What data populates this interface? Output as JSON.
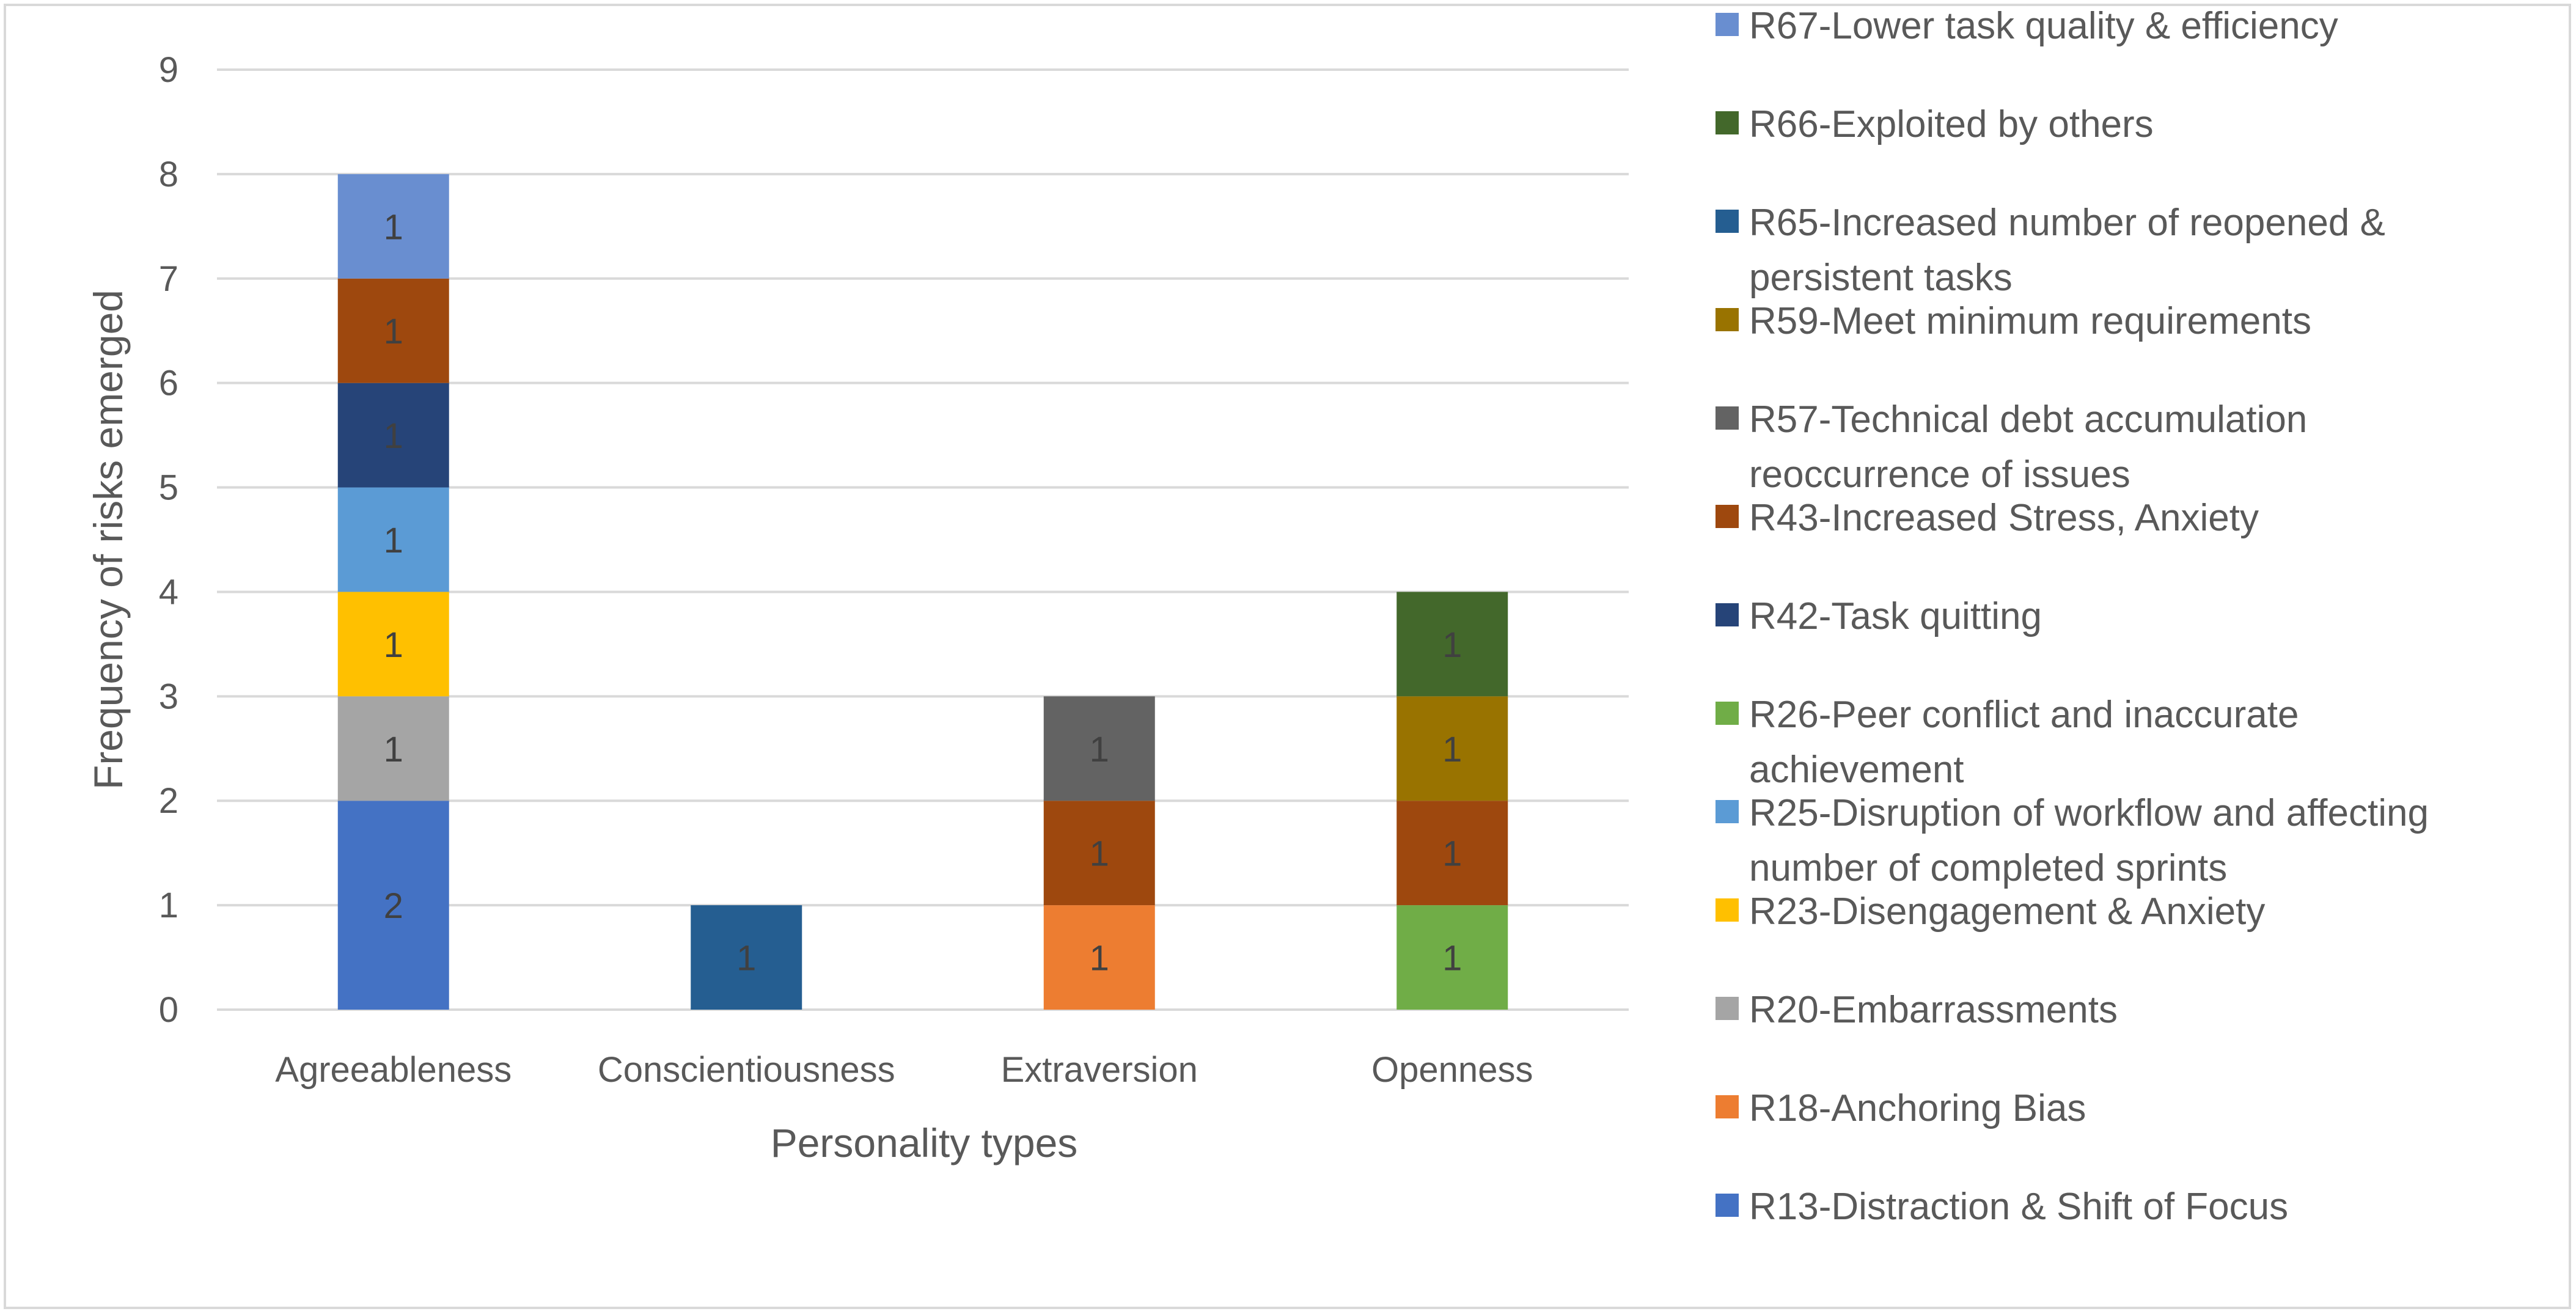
{
  "chart_data": {
    "type": "bar",
    "stacked": true,
    "title": "",
    "xlabel": "Personality types",
    "ylabel": "Frequency of risks emerged",
    "ylim": [
      0,
      9
    ],
    "yticks": [
      0,
      1,
      2,
      3,
      4,
      5,
      6,
      7,
      8,
      9
    ],
    "grid": true,
    "legend_position": "right",
    "categories": [
      "Agreeableness",
      "Conscientiousness",
      "Extraversion",
      "Openness"
    ],
    "series": [
      {
        "name": "R13-Distraction & Shift of Focus",
        "color": "#4472C4",
        "values": [
          2,
          0,
          0,
          0
        ]
      },
      {
        "name": "R18-Anchoring Bias",
        "color": "#ED7D31",
        "values": [
          0,
          0,
          1,
          0
        ]
      },
      {
        "name": "R20-Embarrassments",
        "color": "#A5A5A5",
        "values": [
          1,
          0,
          0,
          0
        ]
      },
      {
        "name": "R23-Disengagement & Anxiety",
        "color": "#FFC000",
        "values": [
          1,
          0,
          0,
          0
        ]
      },
      {
        "name": "R25-Disruption of workflow and affecting number of completed sprints",
        "color": "#5B9BD5",
        "values": [
          1,
          0,
          0,
          0
        ]
      },
      {
        "name": "R26-Peer conflict and inaccurate achievement",
        "color": "#70AD47",
        "values": [
          0,
          0,
          0,
          1
        ]
      },
      {
        "name": "R42-Task quitting",
        "color": "#264478",
        "values": [
          1,
          0,
          0,
          0
        ]
      },
      {
        "name": "R43-Increased Stress, Anxiety",
        "color": "#9E480E",
        "values": [
          1,
          0,
          1,
          1
        ]
      },
      {
        "name": "R57-Technical debt accumulation reoccurrence of issues",
        "color": "#636363",
        "values": [
          0,
          0,
          1,
          0
        ]
      },
      {
        "name": "R59-Meet minimum requirements",
        "color": "#997300",
        "values": [
          0,
          0,
          0,
          1
        ]
      },
      {
        "name": "R65-Increased number of reopened & persistent tasks",
        "color": "#255E91",
        "values": [
          0,
          1,
          0,
          0
        ]
      },
      {
        "name": "R66-Exploited by others",
        "color": "#43682B",
        "values": [
          0,
          0,
          0,
          1
        ]
      },
      {
        "name": "R67-Lower task quality & efficiency",
        "color": "#698ED0",
        "values": [
          1,
          0,
          0,
          0
        ]
      }
    ],
    "legend_lines": [
      [
        "R67-Lower task quality & efficiency"
      ],
      [
        "R66-Exploited by others"
      ],
      [
        "R65-Increased number of reopened &",
        "persistent tasks"
      ],
      [
        "R59-Meet minimum requirements"
      ],
      [
        "R57-Technical debt accumulation",
        "reoccurrence of issues"
      ],
      [
        "R43-Increased Stress, Anxiety"
      ],
      [
        "R42-Task quitting"
      ],
      [
        "R26-Peer conflict and inaccurate",
        "achievement"
      ],
      [
        "R25-Disruption of workflow and affecting",
        "number of completed sprints"
      ],
      [
        "R23-Disengagement & Anxiety"
      ],
      [
        "R20-Embarrassments"
      ],
      [
        "R18-Anchoring Bias"
      ],
      [
        "R13-Distraction & Shift of Focus"
      ]
    ]
  }
}
